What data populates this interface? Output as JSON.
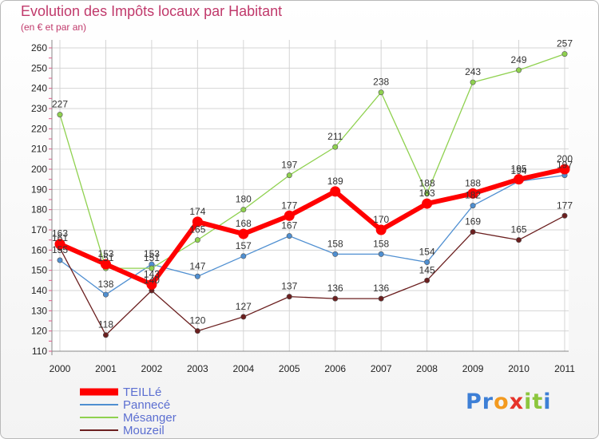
{
  "header": {
    "title": "Evolution des Impôts locaux par Habitant",
    "subtitle": "(en € et par an)"
  },
  "logo": {
    "text": "Proxiti"
  },
  "chart_data": {
    "type": "line",
    "title": "Evolution des Impôts locaux par Habitant",
    "subtitle": "(en € et par an)",
    "xlabel": "",
    "ylabel": "",
    "categories": [
      "2000",
      "2001",
      "2002",
      "2003",
      "2004",
      "2005",
      "2006",
      "2007",
      "2008",
      "2009",
      "2010",
      "2011"
    ],
    "ylim": [
      110,
      260
    ],
    "yticks": [
      "110",
      "120",
      "130",
      "140",
      "150",
      "160",
      "170",
      "180",
      "190",
      "200",
      "210",
      "220",
      "230",
      "240",
      "250",
      "260"
    ],
    "grid": true,
    "legend": "bottom-left",
    "series": [
      {
        "name": "Pannecé",
        "color": "#4f8fd1",
        "values": [
          155,
          138,
          153,
          147,
          157,
          167,
          158,
          158,
          154,
          182,
          194,
          197
        ],
        "labels": [
          "155",
          "138",
          "153",
          "147",
          "157",
          "167",
          "158",
          "158",
          "154",
          "182",
          "194",
          "197"
        ]
      },
      {
        "name": "Mésanger",
        "color": "#8fd14f",
        "values": [
          227,
          151,
          151,
          165,
          180,
          197,
          211,
          238,
          188,
          243,
          249,
          257
        ],
        "labels": [
          "227",
          "151",
          "151",
          "165",
          "180",
          "197",
          "211",
          "238",
          "188",
          "243",
          "249",
          "257"
        ]
      },
      {
        "name": "Mouzeil",
        "color": "#6b1f1f",
        "values": [
          161,
          118,
          140,
          120,
          127,
          137,
          136,
          136,
          145,
          169,
          165,
          177
        ],
        "labels": [
          "161",
          "118",
          "140",
          "120",
          "127",
          "137",
          "136",
          "136",
          "145",
          "169",
          "165",
          "177"
        ]
      },
      {
        "name": "TEILLé",
        "color": "#ff0000",
        "values": [
          163,
          153,
          143,
          174,
          168,
          177,
          189,
          170,
          183,
          188,
          195,
          200
        ],
        "labels": [
          "163",
          "153",
          "143",
          "174",
          "168",
          "177",
          "189",
          "170",
          "183",
          "188",
          "195",
          "200"
        ]
      }
    ],
    "legend_order": [
      "TEILLé",
      "Pannecé",
      "Mésanger",
      "Mouzeil"
    ]
  }
}
